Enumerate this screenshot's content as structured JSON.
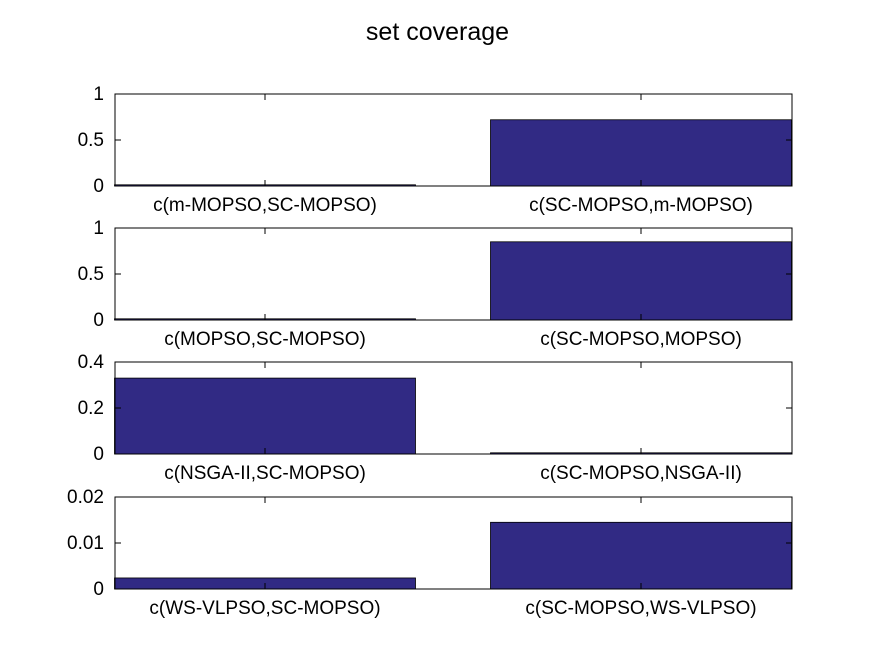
{
  "title": "set coverage",
  "colors": {
    "bar": "#312a84",
    "axis": "#000000",
    "background": "#ffffff"
  },
  "chart_data": [
    {
      "type": "bar",
      "categories": [
        "c(m-MOPSO,SC-MOPSO)",
        "c(SC-MOPSO,m-MOPSO)"
      ],
      "values": [
        0,
        0.72
      ],
      "ylim": [
        0,
        1
      ],
      "yticks": [
        "0",
        "0.5",
        "1"
      ],
      "ytick_values": [
        0,
        0.5,
        1
      ]
    },
    {
      "type": "bar",
      "categories": [
        "c(MOPSO,SC-MOPSO)",
        "c(SC-MOPSO,MOPSO)"
      ],
      "values": [
        0,
        0.85
      ],
      "ylim": [
        0,
        1
      ],
      "yticks": [
        "0",
        "0.5",
        "1"
      ],
      "ytick_values": [
        0,
        0.5,
        1
      ]
    },
    {
      "type": "bar",
      "categories": [
        "c(NSGA-II,SC-MOPSO)",
        "c(SC-MOPSO,NSGA-II)"
      ],
      "values": [
        0.33,
        0.002
      ],
      "ylim": [
        0,
        0.4
      ],
      "yticks": [
        "0",
        "0.2",
        "0.4"
      ],
      "ytick_values": [
        0,
        0.2,
        0.4
      ]
    },
    {
      "type": "bar",
      "categories": [
        "c(WS-VLPSO,SC-MOPSO)",
        "c(SC-MOPSO,WS-VLPSO)"
      ],
      "values": [
        0.0024,
        0.0145
      ],
      "ylim": [
        0,
        0.02
      ],
      "yticks": [
        "0",
        "0.01",
        "0.02"
      ],
      "ytick_values": [
        0,
        0.01,
        0.02
      ]
    }
  ]
}
